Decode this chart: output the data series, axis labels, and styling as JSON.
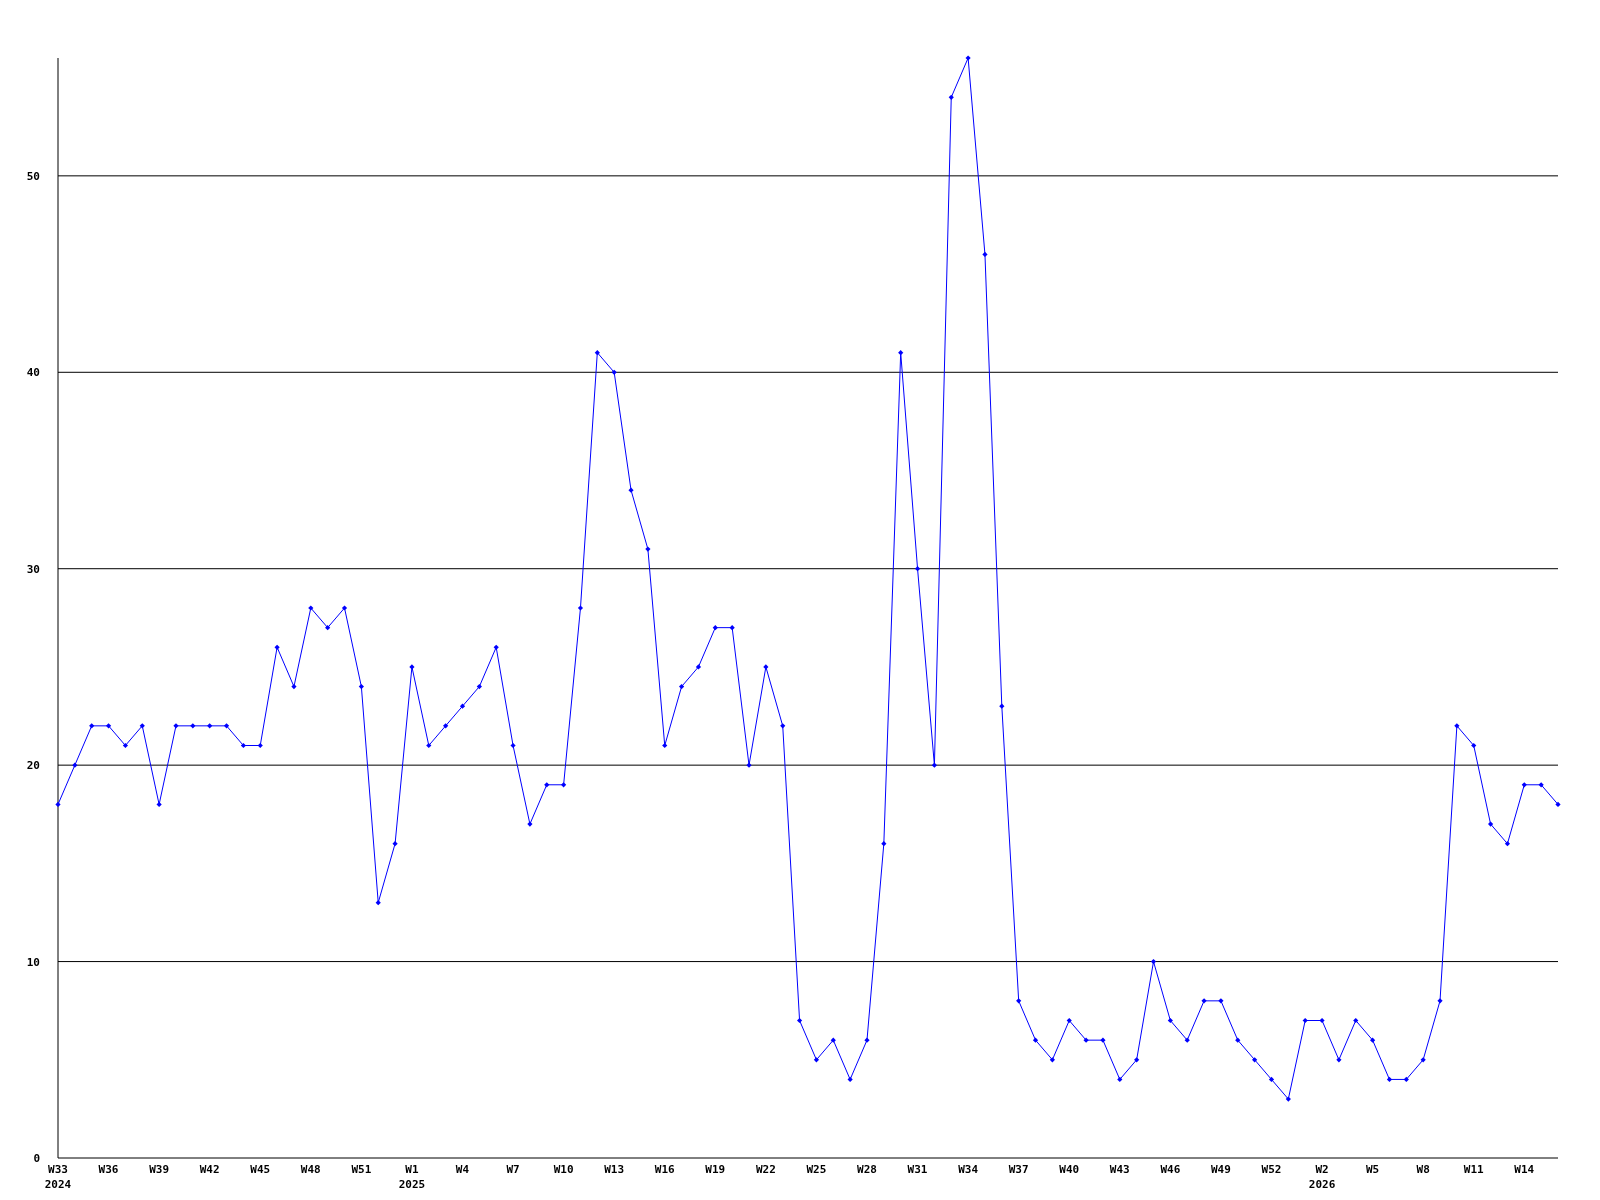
{
  "chart_data": {
    "type": "line",
    "color": "#0000ff",
    "marker": "diamond",
    "grid": "y",
    "categories": [
      "W33\n2024",
      null,
      null,
      "W36",
      null,
      null,
      "W39",
      null,
      null,
      "W42",
      null,
      null,
      "W45",
      null,
      null,
      "W48",
      null,
      null,
      "W51",
      null,
      null,
      "W1\n2025",
      null,
      null,
      "W4",
      null,
      null,
      "W7",
      null,
      null,
      "W10",
      null,
      null,
      "W13",
      null,
      null,
      "W16",
      null,
      null,
      "W19",
      null,
      null,
      "W22",
      null,
      null,
      "W25",
      null,
      null,
      "W28",
      null,
      null,
      "W31",
      null,
      null,
      "W34",
      null,
      null,
      "W37",
      null,
      null,
      "W40",
      null,
      null,
      "W43",
      null,
      null,
      "W46",
      null,
      null,
      "W49",
      null,
      null,
      "W52",
      null,
      null,
      "W2\n2026",
      null,
      null,
      "W5",
      null,
      null,
      "W8",
      null,
      null,
      "W11",
      null,
      null,
      "W14",
      null,
      null
    ],
    "values": [
      18,
      20,
      22,
      22,
      21,
      22,
      18,
      22,
      22,
      22,
      22,
      21,
      21,
      26,
      24,
      28,
      27,
      28,
      24,
      13,
      16,
      25,
      21,
      22,
      23,
      24,
      26,
      21,
      17,
      19,
      19,
      28,
      41,
      40,
      34,
      31,
      21,
      24,
      25,
      27,
      27,
      20,
      25,
      22,
      7,
      5,
      6,
      4,
      6,
      16,
      41,
      30,
      20,
      54,
      56,
      46,
      23,
      8,
      6,
      5,
      7,
      6,
      6,
      4,
      5,
      10,
      7,
      6,
      8,
      8,
      6,
      5,
      4,
      3,
      7,
      7,
      5,
      7,
      6,
      4,
      4,
      5,
      8,
      22,
      21,
      17,
      16,
      19,
      19,
      18
    ],
    "ylim": [
      0,
      56
    ],
    "yticks": [
      0,
      10,
      20,
      30,
      40,
      50
    ]
  }
}
